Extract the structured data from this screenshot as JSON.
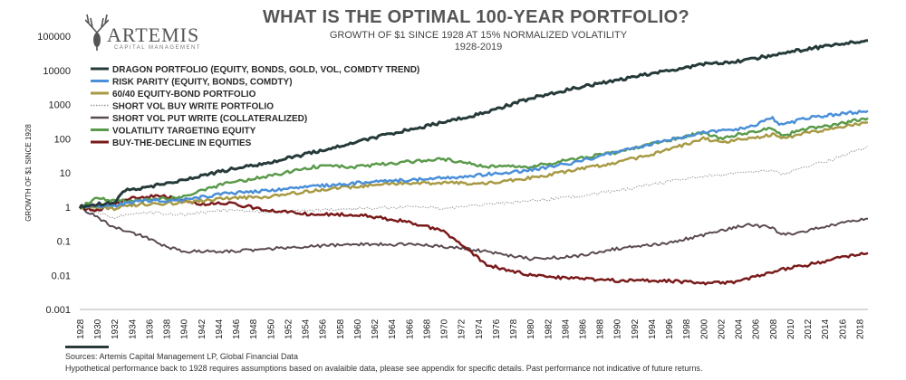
{
  "header": {
    "logo_text": "ARTEMIS",
    "logo_sub": "CAPITAL MANAGEMENT",
    "title": "WHAT IS THE OPTIMAL 100-YEAR PORTFOLIO?",
    "subtitle": "GROWTH OF $1 SINCE 1928 AT 15% NORMALIZED VOLATILITY",
    "subtitle2": "1928-2019"
  },
  "footer": {
    "source": "Sources: Artemis Capital Management LP, Global Financial Data",
    "note": "Hypothetical performance back to 1928 requires assumptions based on avalaible data, please see appendix for specific details.  Past performance not indicative of future returns."
  },
  "chart_data": {
    "type": "line",
    "title": "WHAT IS THE OPTIMAL 100-YEAR PORTFOLIO?",
    "ylabel": "GROWTH OF $1 SINCE 1928",
    "xlabel": "",
    "yscale": "log",
    "ylim": [
      0.001,
      100000
    ],
    "xlim": [
      1928,
      2019
    ],
    "y_ticks": [
      "100000",
      "10000",
      "1000",
      "100",
      "10",
      "1",
      "0.1",
      "0.01",
      "0.001"
    ],
    "x_ticks": [
      1928,
      1930,
      1932,
      1934,
      1936,
      1938,
      1940,
      1942,
      1944,
      1946,
      1948,
      1950,
      1952,
      1954,
      1956,
      1958,
      1960,
      1962,
      1964,
      1966,
      1968,
      1970,
      1972,
      1974,
      1976,
      1978,
      1980,
      1982,
      1984,
      1986,
      1988,
      1990,
      1992,
      1994,
      1996,
      1998,
      2000,
      2002,
      2004,
      2006,
      2008,
      2010,
      2012,
      2014,
      2016,
      2018
    ],
    "legend_position": "top-left",
    "grid": false,
    "series": [
      {
        "name": "DRAGON PORTFOLIO (EQUITY, BONDS, GOLD, VOL, COMDTY TREND)",
        "color": "#263a3a",
        "width": 3,
        "x": [
          1928,
          1930,
          1932,
          1933,
          1935,
          1938,
          1940,
          1942,
          1945,
          1950,
          1955,
          1960,
          1965,
          1970,
          1975,
          1980,
          1985,
          1990,
          1995,
          2000,
          2005,
          2008,
          2010,
          2015,
          2019
        ],
        "y": [
          1,
          1.2,
          1.3,
          3,
          3.5,
          5,
          6,
          8,
          12,
          20,
          40,
          80,
          160,
          300,
          600,
          1500,
          3000,
          5000,
          9000,
          15000,
          20000,
          28000,
          35000,
          55000,
          75000
        ]
      },
      {
        "name": "RISK PARITY (EQUITY, BONDS, COMDTY)",
        "color": "#4a8fd8",
        "width": 2.5,
        "x": [
          1928,
          1932,
          1935,
          1940,
          1945,
          1950,
          1955,
          1960,
          1965,
          1970,
          1975,
          1980,
          1985,
          1990,
          1995,
          2000,
          2005,
          2008,
          2009,
          2012,
          2015,
          2019
        ],
        "y": [
          1,
          1.1,
          1.5,
          1.6,
          2.5,
          3,
          4,
          5,
          6,
          7,
          9,
          12,
          20,
          40,
          80,
          150,
          200,
          400,
          250,
          400,
          500,
          650
        ]
      },
      {
        "name": "60/40 EQUITY-BOND PORTFOLIO",
        "color": "#a89a45",
        "width": 2.5,
        "x": [
          1928,
          1932,
          1935,
          1940,
          1945,
          1950,
          1955,
          1960,
          1965,
          1970,
          1975,
          1980,
          1985,
          1990,
          1995,
          2000,
          2002,
          2005,
          2008,
          2009,
          2012,
          2015,
          2019
        ],
        "y": [
          1,
          0.9,
          1.2,
          1.3,
          1.8,
          2,
          3,
          4,
          5,
          5,
          5,
          7,
          12,
          20,
          40,
          100,
          80,
          100,
          130,
          100,
          150,
          200,
          300
        ]
      },
      {
        "name": "SHORT VOL BUY WRITE PORTFOLIO",
        "color": "#999999",
        "width": 1,
        "dash": "1.5,1.5",
        "x": [
          1928,
          1932,
          1935,
          1940,
          1945,
          1950,
          1955,
          1960,
          1965,
          1970,
          1975,
          1980,
          1985,
          1990,
          1995,
          2000,
          2005,
          2008,
          2009,
          2012,
          2015,
          2019
        ],
        "y": [
          1,
          0.5,
          0.7,
          0.6,
          0.8,
          0.7,
          0.8,
          0.9,
          1,
          0.9,
          1.2,
          1.5,
          2,
          3,
          5,
          8,
          10,
          12,
          9,
          15,
          25,
          60
        ]
      },
      {
        "name": "SHORT VOL PUT WRITE (COLLATERALIZED)",
        "color": "#5a4a52",
        "width": 2,
        "x": [
          1928,
          1930,
          1932,
          1935,
          1938,
          1940,
          1945,
          1950,
          1955,
          1960,
          1965,
          1970,
          1975,
          1980,
          1985,
          1988,
          1990,
          1995,
          2000,
          2005,
          2008,
          2009,
          2012,
          2015,
          2019
        ],
        "y": [
          1,
          0.5,
          0.25,
          0.15,
          0.07,
          0.05,
          0.05,
          0.06,
          0.07,
          0.08,
          0.08,
          0.07,
          0.05,
          0.03,
          0.035,
          0.05,
          0.06,
          0.08,
          0.15,
          0.3,
          0.25,
          0.15,
          0.2,
          0.3,
          0.45
        ]
      },
      {
        "name": "VOLATILITY TARGETING EQUITY",
        "color": "#5a9a4a",
        "width": 2.5,
        "x": [
          1928,
          1930,
          1932,
          1935,
          1940,
          1945,
          1950,
          1955,
          1960,
          1965,
          1970,
          1975,
          1980,
          1985,
          1990,
          1995,
          2000,
          2002,
          2005,
          2008,
          2009,
          2012,
          2015,
          2019
        ],
        "y": [
          1,
          1.8,
          1.5,
          1.5,
          2,
          5,
          8,
          15,
          15,
          20,
          25,
          15,
          15,
          25,
          40,
          80,
          150,
          100,
          150,
          200,
          120,
          200,
          250,
          400
        ]
      },
      {
        "name": "BUY-THE-DECLINE IN EQUITIES",
        "color": "#7a1a1a",
        "width": 2.5,
        "x": [
          1928,
          1930,
          1932,
          1934,
          1936,
          1938,
          1940,
          1942,
          1945,
          1950,
          1955,
          1960,
          1965,
          1970,
          1973,
          1975,
          1980,
          1985,
          1990,
          1995,
          2000,
          2003,
          2005,
          2008,
          2009,
          2012,
          2015,
          2019
        ],
        "y": [
          1,
          0.8,
          1.2,
          1.8,
          2,
          2,
          1.5,
          1.2,
          1.3,
          0.8,
          0.6,
          0.6,
          0.4,
          0.2,
          0.05,
          0.02,
          0.01,
          0.008,
          0.007,
          0.007,
          0.006,
          0.006,
          0.008,
          0.012,
          0.015,
          0.02,
          0.03,
          0.045
        ]
      }
    ]
  }
}
